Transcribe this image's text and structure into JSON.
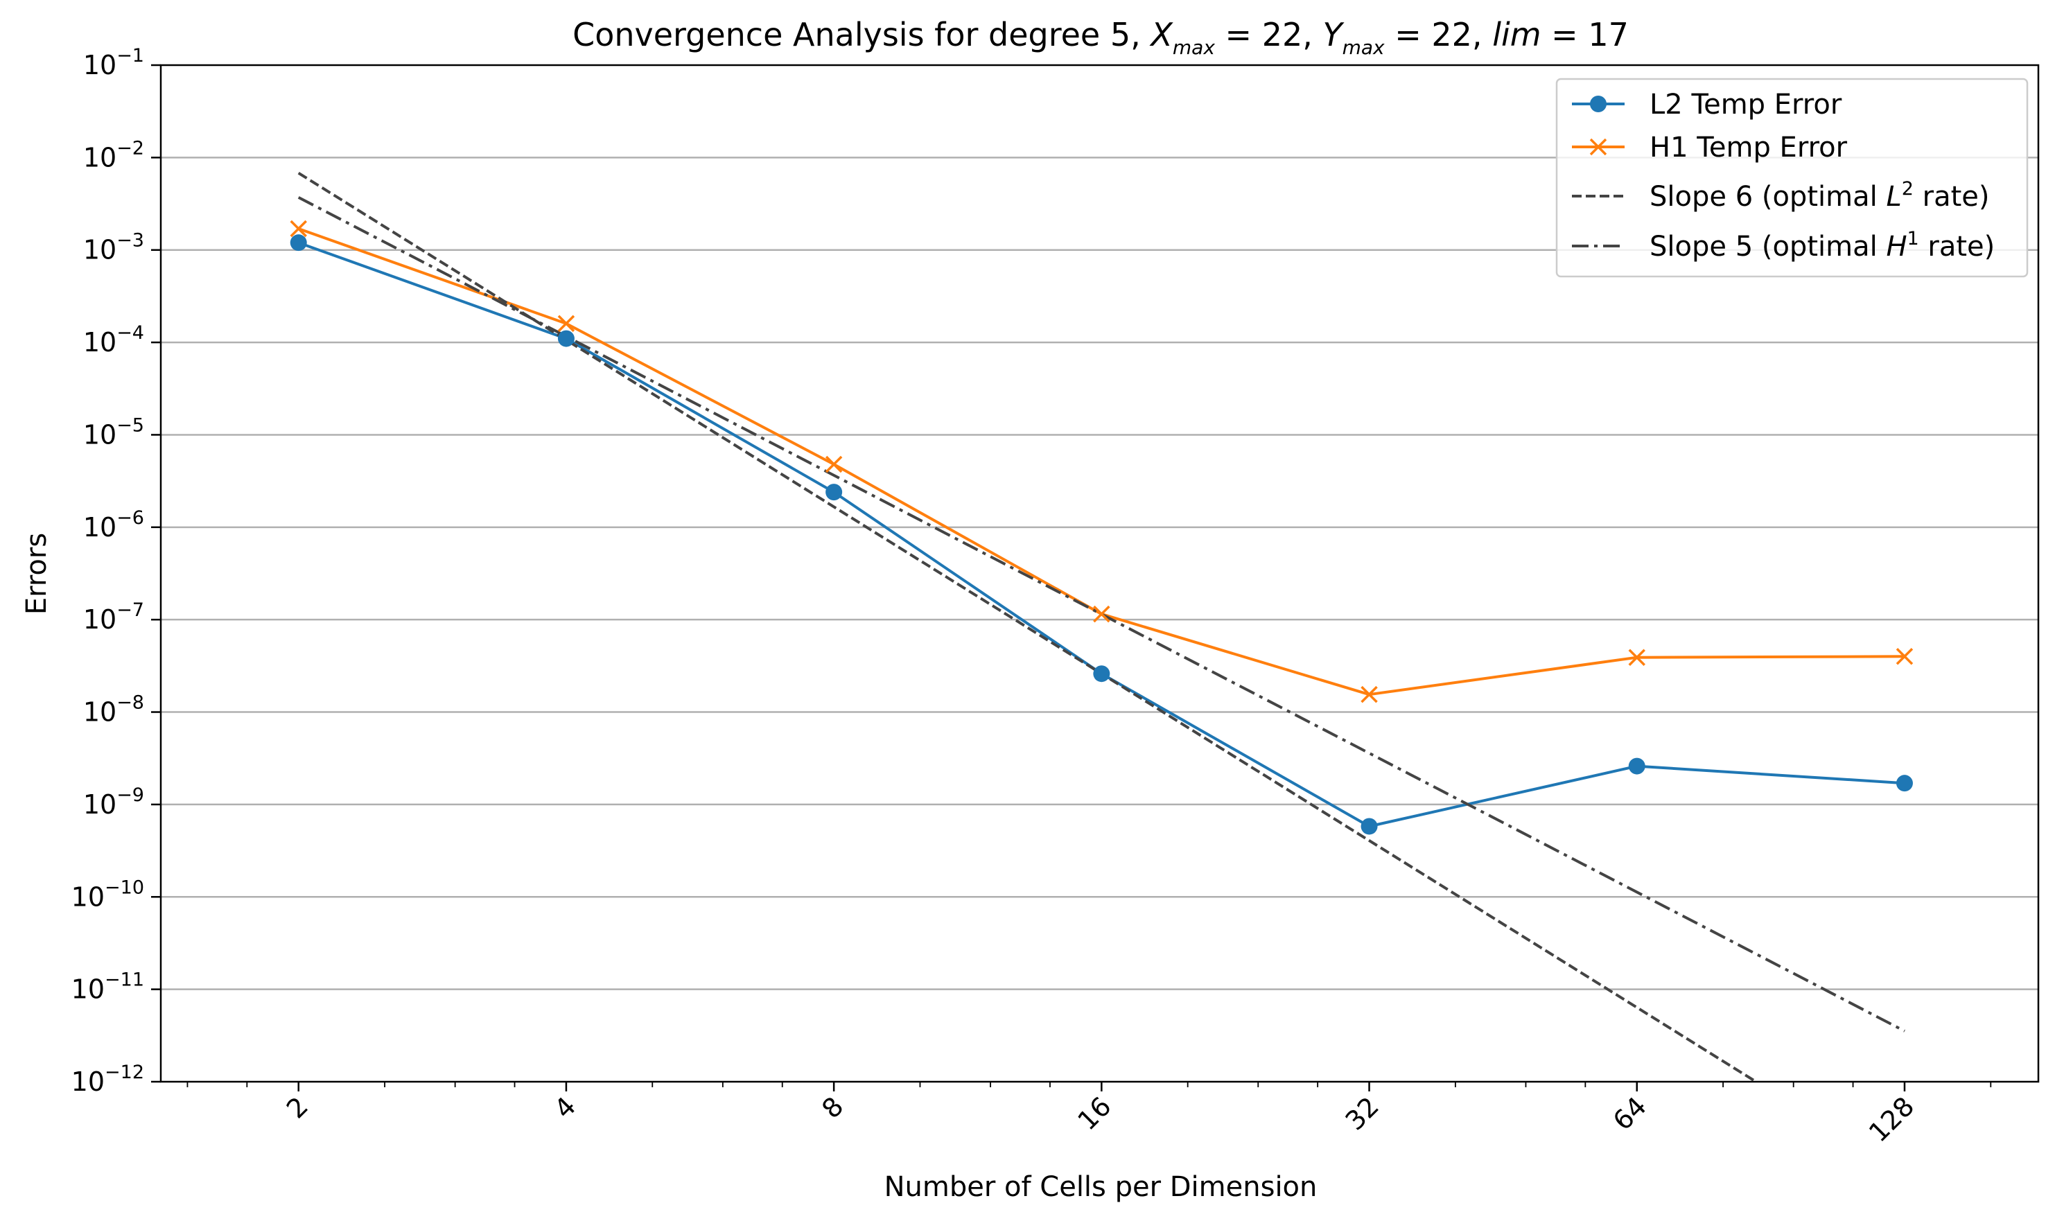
{
  "chart_data": {
    "type": "line",
    "title_parts": {
      "prefix": "Convergence Analysis for degree 5, ",
      "x_var": "X",
      "x_sub": "max",
      "x_val": " = 22, ",
      "y_var": "Y",
      "y_sub": "max",
      "y_val": " = 22, ",
      "lim_var": "lim",
      "lim_val": " = 17"
    },
    "xlabel": "Number of Cells per Dimension",
    "ylabel": "Errors",
    "x_scale": "log2",
    "y_scale": "log10",
    "xlim": [
      1.4,
      181
    ],
    "ylim": [
      1e-12,
      0.1
    ],
    "x_ticks": [
      2,
      4,
      8,
      16,
      32,
      64,
      128
    ],
    "x_tick_labels": [
      "2",
      "4",
      "8",
      "16",
      "32",
      "64",
      "128"
    ],
    "y_ticks": [
      {
        "exp": -1,
        "mantissa": "10",
        "exponent": "−1"
      },
      {
        "exp": -2,
        "mantissa": "10",
        "exponent": "−2"
      },
      {
        "exp": -3,
        "mantissa": "10",
        "exponent": "−3"
      },
      {
        "exp": -4,
        "mantissa": "10",
        "exponent": "−4"
      },
      {
        "exp": -5,
        "mantissa": "10",
        "exponent": "−5"
      },
      {
        "exp": -6,
        "mantissa": "10",
        "exponent": "−6"
      },
      {
        "exp": -7,
        "mantissa": "10",
        "exponent": "−7"
      },
      {
        "exp": -8,
        "mantissa": "10",
        "exponent": "−8"
      },
      {
        "exp": -9,
        "mantissa": "10",
        "exponent": "−9"
      },
      {
        "exp": -10,
        "mantissa": "10",
        "exponent": "−10"
      },
      {
        "exp": -11,
        "mantissa": "10",
        "exponent": "−11"
      },
      {
        "exp": -12,
        "mantissa": "10",
        "exponent": "−12"
      }
    ],
    "grid": "y-major",
    "legend_position": "top-right",
    "series": [
      {
        "name": "L2 Temp Error",
        "color": "#1f77b4",
        "marker": "circle",
        "linestyle": "solid",
        "x": [
          2,
          4,
          8,
          16,
          32,
          64,
          128
        ],
        "y": [
          0.0012,
          0.00011,
          2.4e-06,
          2.6e-08,
          5.8e-10,
          2.6e-09,
          1.7e-09
        ]
      },
      {
        "name": "H1 Temp Error",
        "color": "#ff7f0e",
        "marker": "x",
        "linestyle": "solid",
        "x": [
          2,
          4,
          8,
          16,
          32,
          64,
          128
        ],
        "y": [
          0.0017,
          0.00016,
          4.8e-06,
          1.15e-07,
          1.55e-08,
          3.9e-08,
          4e-08
        ]
      },
      {
        "name_prefix": "Slope 6 (optimal ",
        "name_var": "L",
        "name_sup": "2",
        "name_suffix": " rate)",
        "color": "#444444",
        "marker": "none",
        "linestyle": "dashed",
        "x": [
          2,
          128
        ],
        "y": [
          0.0068,
          9.95e-14
        ]
      },
      {
        "name_prefix": "Slope 5 (optimal ",
        "name_var": "H",
        "name_sup": "1",
        "name_suffix": " rate)",
        "color": "#444444",
        "marker": "none",
        "linestyle": "dashdot",
        "x": [
          2,
          128
        ],
        "y": [
          0.0037,
          3.53e-12
        ]
      }
    ]
  }
}
